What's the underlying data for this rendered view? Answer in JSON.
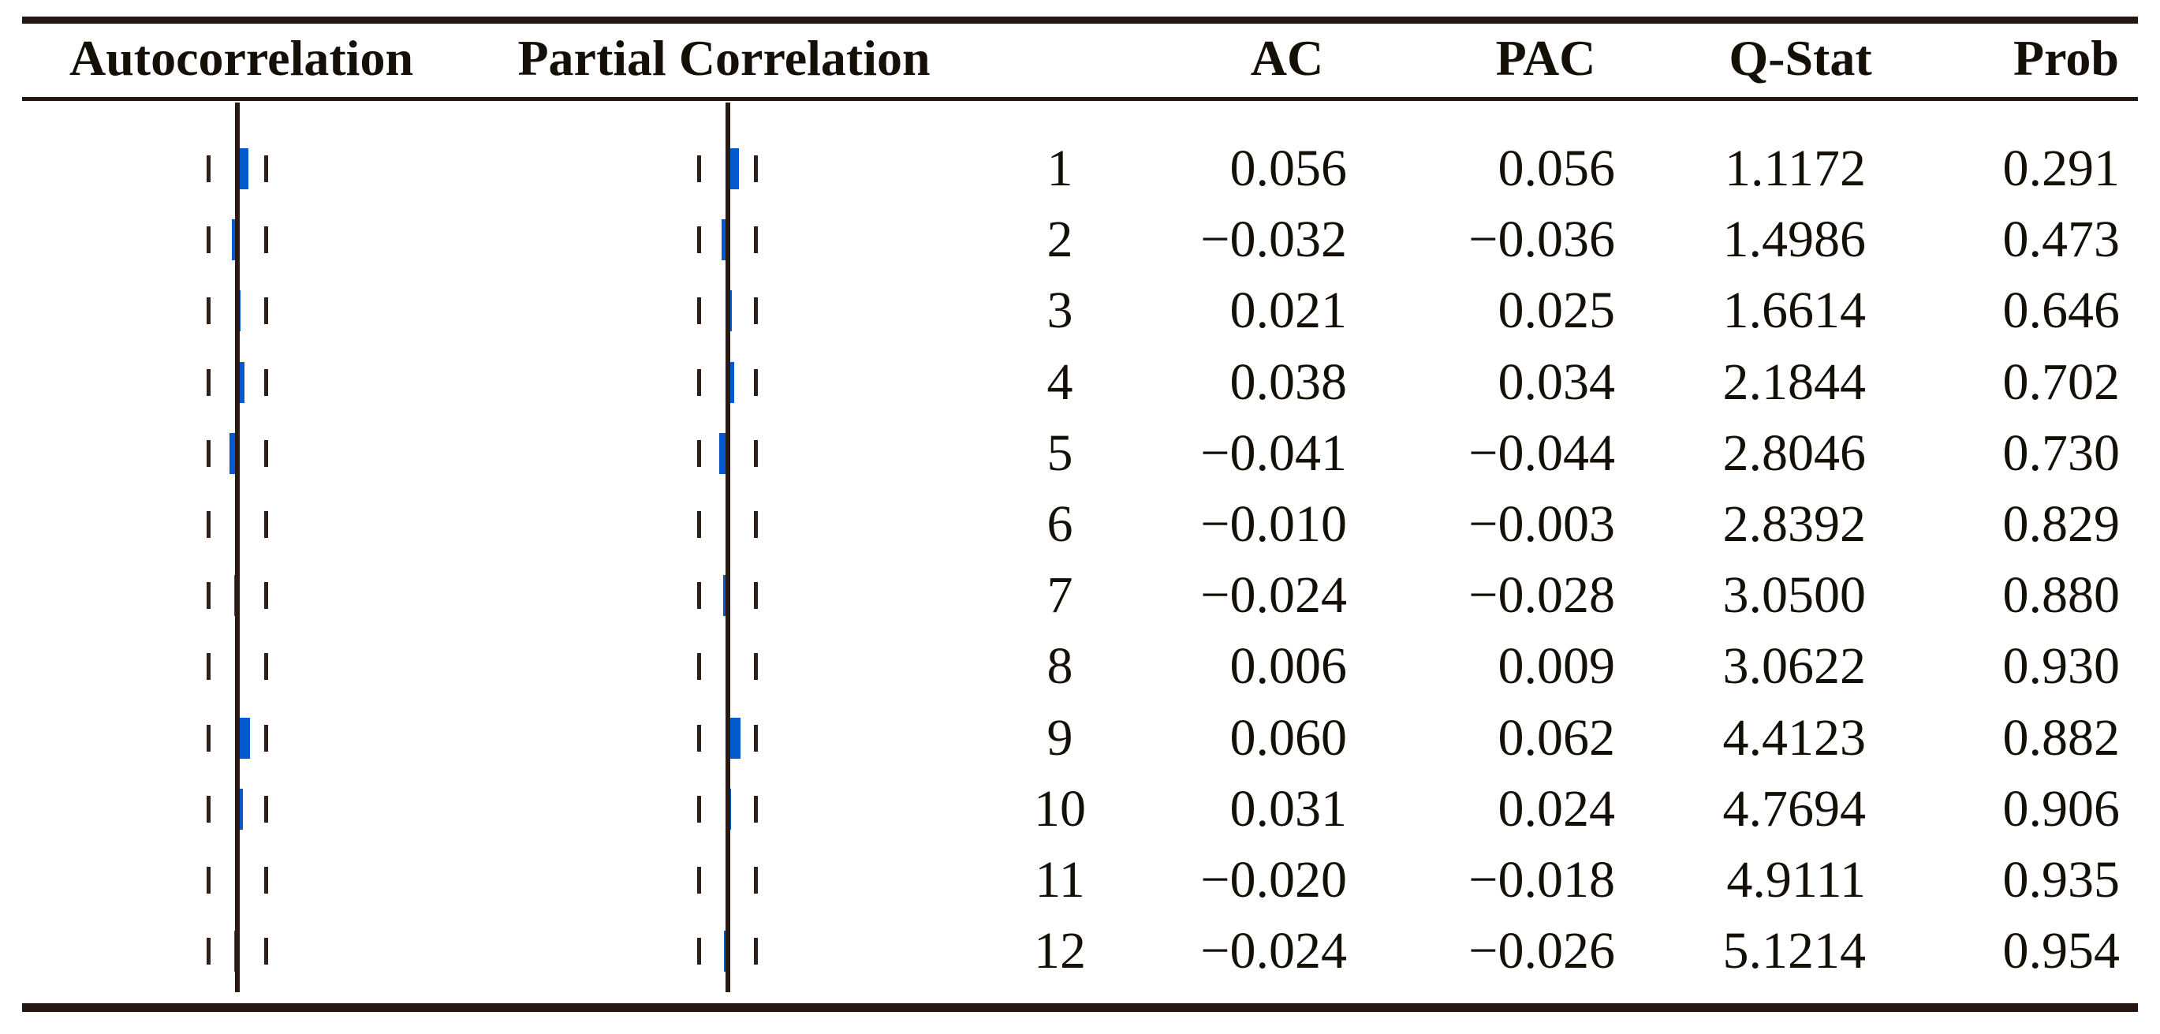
{
  "colors": {
    "bar_blue": "#0459cf",
    "rule_dark": "#241712",
    "text": "#141008",
    "background": "#ffffff"
  },
  "headers": {
    "autocorrelation": "Autocorrelation",
    "partial_correlation": "Partial Correlation",
    "ac": "AC",
    "pac": "PAC",
    "q_stat": "Q-Stat",
    "prob": "Prob"
  },
  "rows": [
    {
      "lag": "1",
      "ac": "0.056",
      "pac": "0.056",
      "q_stat": "1.1172",
      "prob": "0.291"
    },
    {
      "lag": "2",
      "ac": "−0.032",
      "pac": "−0.036",
      "q_stat": "1.4986",
      "prob": "0.473"
    },
    {
      "lag": "3",
      "ac": "0.021",
      "pac": "0.025",
      "q_stat": "1.6614",
      "prob": "0.646"
    },
    {
      "lag": "4",
      "ac": "0.038",
      "pac": "0.034",
      "q_stat": "2.1844",
      "prob": "0.702"
    },
    {
      "lag": "5",
      "ac": "−0.041",
      "pac": "−0.044",
      "q_stat": "2.8046",
      "prob": "0.730"
    },
    {
      "lag": "6",
      "ac": "−0.010",
      "pac": "−0.003",
      "q_stat": "2.8392",
      "prob": "0.829"
    },
    {
      "lag": "7",
      "ac": "−0.024",
      "pac": "−0.028",
      "q_stat": "3.0500",
      "prob": "0.880"
    },
    {
      "lag": "8",
      "ac": "0.006",
      "pac": "0.009",
      "q_stat": "3.0622",
      "prob": "0.930"
    },
    {
      "lag": "9",
      "ac": "0.060",
      "pac": "0.062",
      "q_stat": "4.4123",
      "prob": "0.882"
    },
    {
      "lag": "10",
      "ac": "0.031",
      "pac": "0.024",
      "q_stat": "4.7694",
      "prob": "0.906"
    },
    {
      "lag": "11",
      "ac": "−0.020",
      "pac": "−0.018",
      "q_stat": "4.9111",
      "prob": "0.935"
    },
    {
      "lag": "12",
      "ac": "−0.024",
      "pac": "−0.026",
      "q_stat": "5.1214",
      "prob": "0.954"
    }
  ],
  "chart_data": {
    "type": "bar",
    "orientation": "horizontal",
    "title": "",
    "categories": [
      1,
      2,
      3,
      4,
      5,
      6,
      7,
      8,
      9,
      10,
      11,
      12
    ],
    "series": [
      {
        "name": "Autocorrelation (AC)",
        "values": [
          0.056,
          -0.032,
          0.021,
          0.038,
          -0.041,
          -0.01,
          -0.024,
          0.006,
          0.06,
          0.031,
          -0.02,
          -0.024
        ]
      },
      {
        "name": "Partial Correlation (PAC)",
        "values": [
          0.056,
          -0.036,
          0.025,
          0.034,
          -0.044,
          -0.003,
          -0.028,
          0.009,
          0.062,
          0.024,
          -0.018,
          -0.026
        ]
      }
    ],
    "q_stat": [
      1.1172,
      1.4986,
      1.6614,
      2.1844,
      2.8046,
      2.8392,
      3.05,
      3.0622,
      4.4123,
      4.7694,
      4.9111,
      5.1214
    ],
    "prob": [
      0.291,
      0.473,
      0.646,
      0.702,
      0.73,
      0.829,
      0.88,
      0.93,
      0.882,
      0.906,
      0.935,
      0.954
    ],
    "zero_line": 0,
    "confidence_band_abs": 0.12,
    "xlim": [
      -0.2,
      0.2
    ],
    "grid": false,
    "legend": "none",
    "bar_color": "#0459cf"
  }
}
